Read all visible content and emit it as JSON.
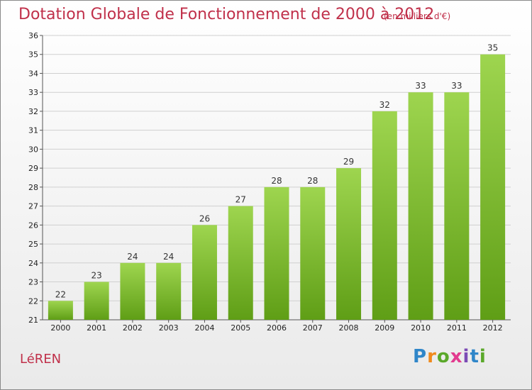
{
  "header": {
    "title": "Dotation Globale de Fonctionnement de 2000 à 2012",
    "subtitle": "(en milliers d'€)"
  },
  "footer": {
    "place": "LéREN",
    "logo": [
      "P",
      "r",
      "o",
      "x",
      "i",
      "t",
      "i"
    ],
    "logo_colors": [
      "#2f86c9",
      "#f08a1c",
      "#5aa82a",
      "#e23b8f",
      "#7b4bb5",
      "#2f86c9",
      "#5aa82a"
    ]
  },
  "colors": {
    "bar_top": "#9ed54f",
    "bar_bottom": "#5f9e16",
    "accent": "#c0304a",
    "grid": "#d0d0d0"
  },
  "chart_data": {
    "type": "bar",
    "categories": [
      "2000",
      "2001",
      "2002",
      "2003",
      "2004",
      "2005",
      "2006",
      "2007",
      "2008",
      "2009",
      "2010",
      "2011",
      "2012"
    ],
    "values": [
      22,
      23,
      24,
      24,
      26,
      27,
      28,
      28,
      29,
      32,
      33,
      33,
      35
    ],
    "ylim": [
      21,
      36
    ],
    "yticks": [
      21,
      22,
      23,
      24,
      25,
      26,
      27,
      28,
      29,
      30,
      31,
      32,
      33,
      34,
      35,
      36
    ],
    "grid": true,
    "data_labels": true
  }
}
